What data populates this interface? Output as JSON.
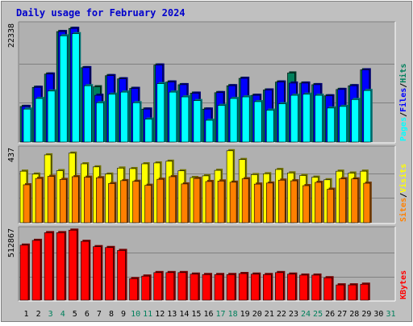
{
  "chart_data": {
    "type": "bar",
    "title": "Daily usage for February 2024",
    "categories": [
      "1",
      "2",
      "3",
      "4",
      "5",
      "6",
      "7",
      "8",
      "9",
      "10",
      "11",
      "12",
      "13",
      "14",
      "15",
      "16",
      "17",
      "18",
      "19",
      "20",
      "21",
      "22",
      "23",
      "24",
      "25",
      "26",
      "27",
      "28",
      "29",
      "30",
      "31"
    ],
    "weekend_days": [
      "3",
      "4",
      "10",
      "11",
      "17",
      "18",
      "24",
      "25",
      "31"
    ],
    "colors": {
      "hits": "#00805C",
      "files": "#0000FF",
      "pages": "#00FFFF",
      "visits": "#FFFF00",
      "sites": "#FF8000",
      "kbytes": "#FF0000",
      "title": "#0000CC",
      "weekend": "#00805C",
      "weekday": "#000000",
      "background": "#C0C0C0",
      "panel": "#B0B0B0"
    },
    "panels": [
      {
        "max_label": "22338",
        "legend": [
          {
            "label": "Hits",
            "color": "#00805C"
          },
          {
            "label": "Files",
            "color": "#0000FF"
          },
          {
            "label": "Pages",
            "color": "#00FFFF"
          }
        ],
        "ylim": [
          0,
          22338
        ],
        "series": [
          {
            "name": "Hits",
            "values": [
              6700,
              10300,
              12800,
              20800,
              21400,
              14000,
              10400,
              12500,
              11900,
              10100,
              6200,
              14500,
              11300,
              10800,
              9200,
              6200,
              9300,
              10600,
              12000,
              8800,
              9800,
              11300,
              13000,
              11100,
              10800,
              8700,
              9900,
              10600,
              13600,
              null,
              null
            ]
          },
          {
            "name": "Files",
            "values": [
              6700,
              10300,
              12800,
              20800,
              21400,
              14000,
              8800,
              12500,
              11900,
              10100,
              6200,
              14500,
              11300,
              10800,
              9200,
              6200,
              9300,
              10600,
              12000,
              8800,
              9800,
              11300,
              11100,
              11100,
              10800,
              8700,
              9900,
              10600,
              13600,
              null,
              null
            ]
          },
          {
            "name": "Pages",
            "values": [
              6200,
              8200,
              9600,
              20000,
              20400,
              10600,
              7400,
              9000,
              9400,
              7400,
              4300,
              11000,
              9400,
              8500,
              7800,
              4100,
              6900,
              8200,
              8500,
              7600,
              6000,
              7200,
              8800,
              9000,
              8800,
              6400,
              6700,
              8000,
              9700,
              null,
              null
            ]
          }
        ]
      },
      {
        "max_label": "437",
        "legend": [
          {
            "label": "Visits",
            "color": "#FFFF00"
          },
          {
            "label": "Sites",
            "color": "#FF8000"
          }
        ],
        "ylim": [
          0,
          437
        ],
        "series": [
          {
            "name": "Visits",
            "values": [
              300,
              283,
              395,
              303,
              405,
              343,
              325,
              283,
              318,
              315,
              343,
              348,
              358,
              302,
              263,
              273,
              305,
              419,
              368,
              280,
              285,
              310,
              290,
              275,
              265,
              250,
              300,
              289,
              300,
              null,
              null
            ]
          },
          {
            "name": "Sites",
            "values": [
              221,
              258,
              270,
              252,
              268,
              265,
              262,
              228,
              245,
              241,
              218,
              253,
              268,
              226,
              258,
              240,
              243,
              236,
              256,
              225,
              231,
              248,
              244,
              216,
              235,
              195,
              256,
              255,
              230,
              null,
              null
            ]
          }
        ]
      },
      {
        "max_label": "512867",
        "legend": [
          {
            "label": "KBytes",
            "color": "#FF0000"
          }
        ],
        "ylim": [
          0,
          512867
        ],
        "series": [
          {
            "name": "KBytes",
            "values": [
              393000,
              427000,
              482000,
              482000,
              500000,
              420000,
              382000,
              376000,
              355000,
              154000,
              172000,
              197000,
              197000,
              197000,
              186000,
              183000,
              183000,
              183000,
              190000,
              186000,
              183000,
              197000,
              186000,
              179000,
              179000,
              160000,
              109000,
              109000,
              114000,
              null,
              null
            ]
          }
        ]
      }
    ]
  }
}
